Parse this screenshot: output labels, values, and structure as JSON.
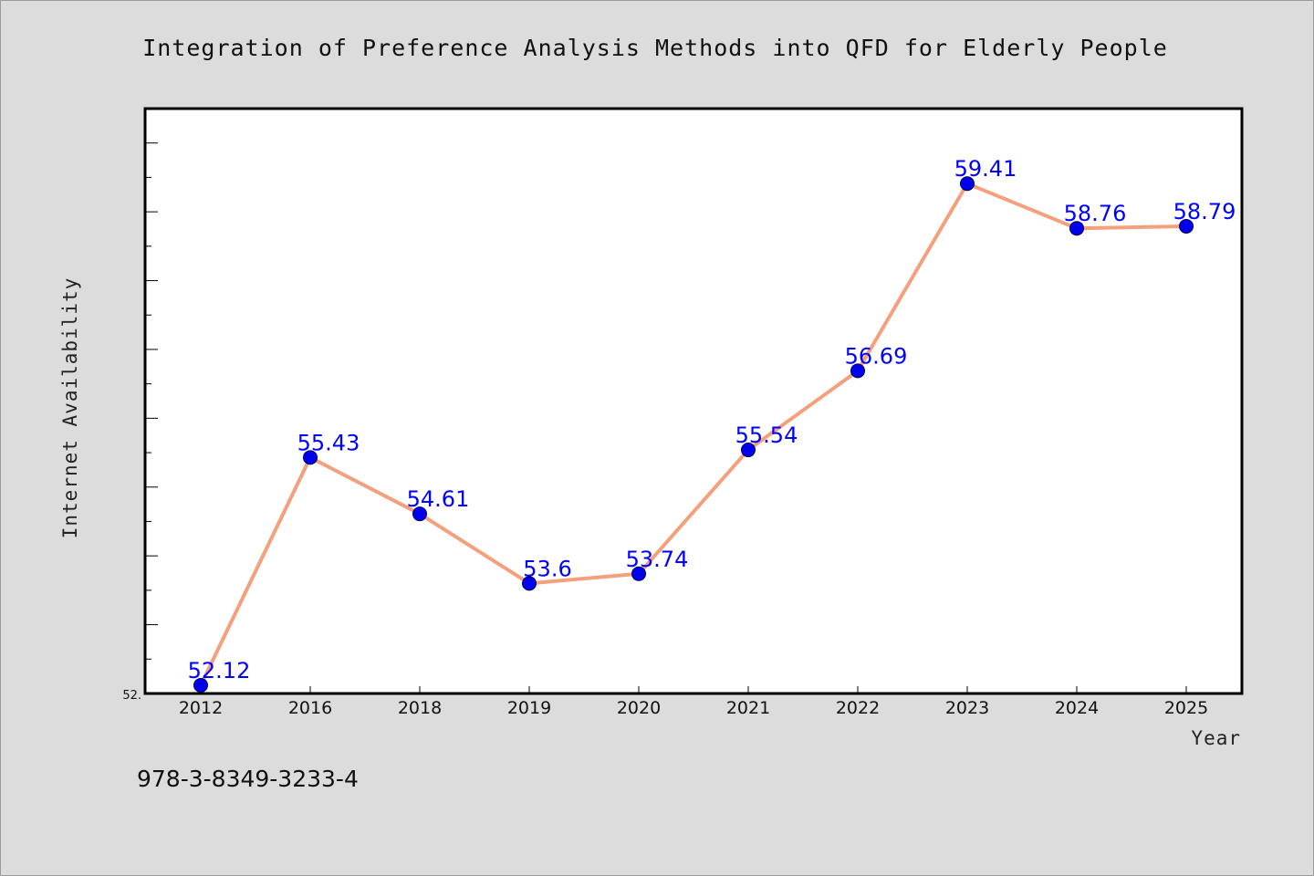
{
  "chart_data": {
    "type": "line",
    "title": "Integration of Preference Analysis Methods into QFD for Elderly People",
    "xlabel": "Year",
    "ylabel": "Internet Availability",
    "categories": [
      "2012",
      "2016",
      "2018",
      "2019",
      "2020",
      "2021",
      "2022",
      "2023",
      "2024",
      "2025"
    ],
    "series": [
      {
        "values": [
          52.12,
          55.43,
          54.61,
          53.6,
          53.74,
          55.54,
          56.69,
          59.41,
          58.76,
          58.79
        ],
        "data_labels": [
          "52.12",
          "55.43",
          "54.61",
          "53.6",
          "53.74",
          "55.54",
          "56.69",
          "59.41",
          "58.76",
          "58.79"
        ]
      }
    ],
    "ylim": [
      52.0,
      60.5
    ],
    "ytick_labels": [
      "52."
    ],
    "grid": false,
    "line_color": "#f4a07c",
    "marker_color": "#0000ee",
    "label_color": "#0000ff"
  },
  "footer": {
    "isbn": "978-3-8349-3233-4"
  }
}
